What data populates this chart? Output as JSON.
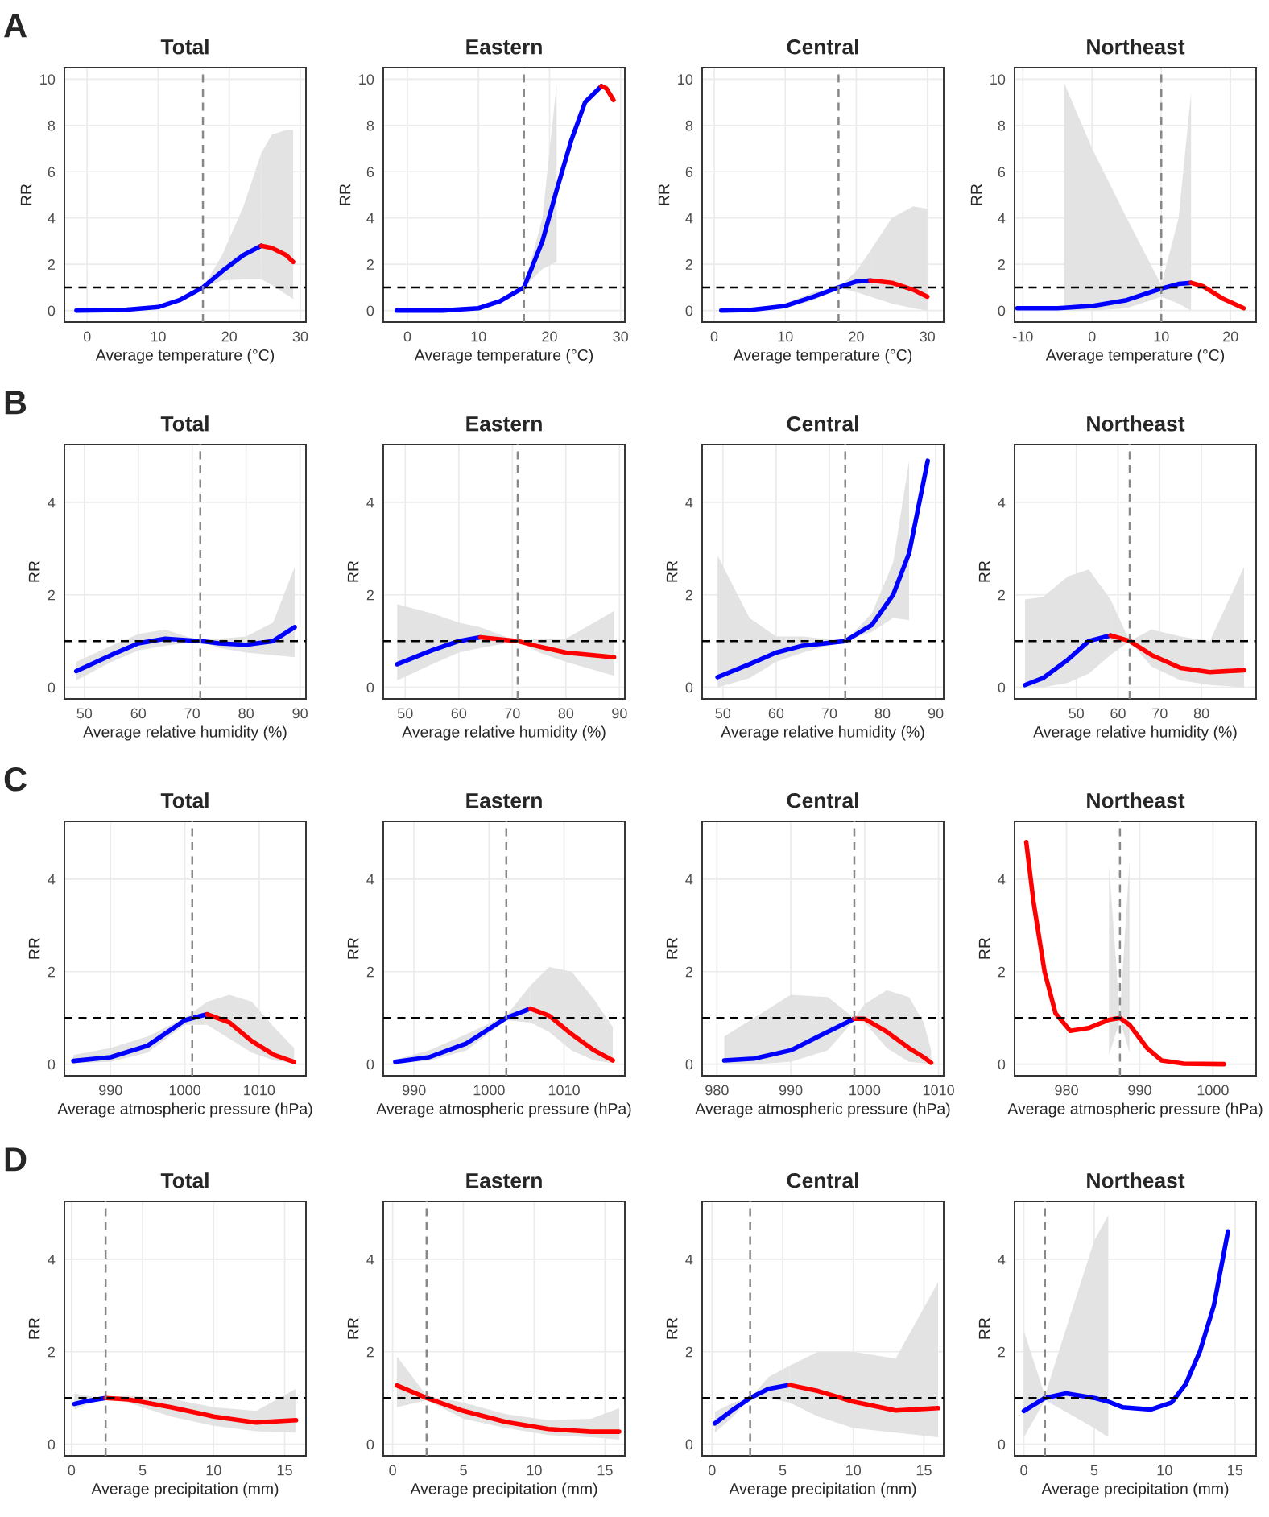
{
  "chart_data": [
    {
      "type": "line",
      "title": "Total",
      "xlabel": "Average temperature (°C)",
      "ylabel": "RR",
      "annotations": [
        "A"
      ],
      "xlim": [
        -3.2,
        30.8
      ],
      "xticks": [
        0,
        10,
        20,
        30
      ],
      "ylim": [
        -0.5,
        10.5
      ],
      "yticks": [
        0,
        2,
        4,
        6,
        8,
        10
      ],
      "grid": true,
      "line_style": "solid",
      "ref_lines": [
        {
          "axis": "x",
          "value": 16.3,
          "color": "#888888",
          "line_style": "dashed"
        },
        {
          "axis": "y",
          "value": 1,
          "color": "#000000",
          "line_style": "dashed"
        }
      ],
      "series": [
        {
          "color": "#0000ff",
          "x": [
            -1.5,
            5,
            10,
            13,
            16.3,
            19,
            22,
            24.5
          ],
          "values": [
            0,
            0.02,
            0.15,
            0.45,
            1,
            1.7,
            2.4,
            2.8
          ],
          "lower": [
            0,
            0.02,
            0.12,
            0.4,
            1,
            1.3,
            1.35,
            1.35
          ],
          "upper": [
            0,
            0.02,
            0.18,
            0.5,
            1,
            2.4,
            4.5,
            6.8
          ]
        },
        {
          "color": "#ff0000",
          "x": [
            24.5,
            26,
            28,
            29
          ],
          "values": [
            2.8,
            2.7,
            2.4,
            2.1
          ],
          "lower": [
            1.35,
            1.1,
            0.7,
            0.5
          ],
          "upper": [
            6.8,
            7.6,
            7.8,
            7.8
          ]
        }
      ]
    },
    {
      "type": "line",
      "title": "Eastern",
      "xlabel": "Average temperature (°C)",
      "ylabel": "RR",
      "xlim": [
        -3.4,
        30.6
      ],
      "xticks": [
        0,
        10,
        20,
        30
      ],
      "ylim": [
        -0.5,
        10.5
      ],
      "yticks": [
        0,
        2,
        4,
        6,
        8,
        10
      ],
      "grid": true,
      "line_style": "solid",
      "ref_lines": [
        {
          "axis": "x",
          "value": 16.4,
          "color": "#888888",
          "line_style": "dashed"
        },
        {
          "axis": "y",
          "value": 1,
          "color": "#000000",
          "line_style": "dashed"
        }
      ],
      "series": [
        {
          "color": "#0000ff",
          "x": [
            -1.5,
            5,
            10,
            13,
            16.4,
            19,
            21,
            23,
            25,
            27.3
          ],
          "values": [
            0,
            0,
            0.1,
            0.4,
            1,
            3,
            5.2,
            7.3,
            9,
            9.7
          ],
          "lower": [
            0,
            0,
            0.1,
            0.4,
            1,
            1.8,
            2.1,
            null,
            null,
            null
          ],
          "upper": [
            0,
            0,
            0.1,
            0.4,
            1,
            4,
            9.8,
            null,
            null,
            null
          ]
        },
        {
          "color": "#ff0000",
          "x": [
            27.3,
            28,
            29
          ],
          "values": [
            9.7,
            9.6,
            9.1
          ]
        }
      ]
    },
    {
      "type": "line",
      "title": "Central",
      "xlabel": "Average temperature (°C)",
      "ylabel": "RR",
      "xlim": [
        -1.7,
        32.3
      ],
      "xticks": [
        0,
        10,
        20,
        30
      ],
      "ylim": [
        -0.5,
        10.5
      ],
      "yticks": [
        0,
        2,
        4,
        6,
        8,
        10
      ],
      "grid": true,
      "line_style": "solid",
      "ref_lines": [
        {
          "axis": "x",
          "value": 17.5,
          "color": "#888888",
          "line_style": "dashed"
        },
        {
          "axis": "y",
          "value": 1,
          "color": "#000000",
          "line_style": "dashed"
        }
      ],
      "series": [
        {
          "color": "#0000ff",
          "x": [
            1,
            5,
            10,
            14,
            17.5,
            20,
            22
          ],
          "values": [
            0,
            0.02,
            0.2,
            0.6,
            1,
            1.25,
            1.3
          ],
          "lower": [
            0,
            0.02,
            0.1,
            0.45,
            1,
            0.8,
            0.6
          ],
          "upper": [
            0,
            0.05,
            0.3,
            0.8,
            1,
            1.7,
            2.6
          ]
        },
        {
          "color": "#ff0000",
          "x": [
            22,
            25,
            28,
            30
          ],
          "values": [
            1.3,
            1.2,
            0.9,
            0.6
          ],
          "lower": [
            0.6,
            0.3,
            0.1,
            0
          ],
          "upper": [
            2.6,
            4,
            4.5,
            4.4
          ]
        }
      ]
    },
    {
      "type": "line",
      "title": "Northeast",
      "xlabel": "Average temperature (°C)",
      "ylabel": "RR",
      "xlim": [
        -11.2,
        23.7
      ],
      "xticks": [
        -10,
        0,
        10,
        20
      ],
      "ylim": [
        -0.5,
        10.5
      ],
      "yticks": [
        0,
        2,
        4,
        6,
        8,
        10
      ],
      "grid": true,
      "line_style": "solid",
      "ref_lines": [
        {
          "axis": "x",
          "value": 10,
          "color": "#888888",
          "line_style": "dashed"
        },
        {
          "axis": "y",
          "value": 1,
          "color": "#000000",
          "line_style": "dashed"
        }
      ],
      "series": [
        {
          "color": "#0000ff",
          "x": [
            -10.8,
            -5,
            -4,
            0,
            5,
            10,
            12.5,
            14.3
          ],
          "values": [
            0.1,
            0.1,
            0.12,
            0.2,
            0.45,
            0.95,
            1.15,
            1.2
          ],
          "lower": [
            null,
            null,
            0,
            0,
            0.1,
            0.6,
            0.3,
            0
          ],
          "upper": [
            null,
            null,
            9.8,
            7,
            4,
            1.1,
            4,
            9.4
          ]
        },
        {
          "color": "#ff0000",
          "x": [
            14.3,
            16,
            19,
            21.9
          ],
          "values": [
            1.2,
            1.05,
            0.5,
            0.1
          ]
        }
      ]
    },
    {
      "type": "line",
      "title": "Total",
      "xlabel": "Average relative humidity (%)",
      "ylabel": "RR",
      "annotations": [
        "B"
      ],
      "xlim": [
        46.3,
        91.1
      ],
      "xticks": [
        50,
        60,
        70,
        80,
        90
      ],
      "ylim": [
        -0.25,
        5.25
      ],
      "yticks": [
        0,
        2,
        4
      ],
      "grid": true,
      "line_style": "solid",
      "ref_lines": [
        {
          "axis": "x",
          "value": 71.5,
          "color": "#888888",
          "line_style": "dashed"
        },
        {
          "axis": "y",
          "value": 1,
          "color": "#000000",
          "line_style": "dashed"
        }
      ],
      "series": [
        {
          "color": "#0000ff",
          "x": [
            48.5,
            55,
            60,
            65,
            71.5,
            75,
            80,
            85,
            89
          ],
          "values": [
            0.35,
            0.7,
            0.95,
            1.05,
            1.0,
            0.95,
            0.92,
            1.0,
            1.3
          ],
          "lower": [
            0.15,
            0.55,
            0.8,
            0.9,
            1,
            0.85,
            0.75,
            0.7,
            0.65
          ],
          "upper": [
            0.55,
            0.9,
            1.15,
            1.25,
            1,
            1.05,
            1.1,
            1.4,
            2.6
          ]
        }
      ]
    },
    {
      "type": "line",
      "title": "Eastern",
      "xlabel": "Average relative humidity (%)",
      "ylabel": "RR",
      "xlim": [
        45.9,
        91
      ],
      "xticks": [
        50,
        60,
        70,
        80,
        90
      ],
      "ylim": [
        -0.25,
        5.25
      ],
      "yticks": [
        0,
        2,
        4
      ],
      "grid": true,
      "line_style": "solid",
      "ref_lines": [
        {
          "axis": "x",
          "value": 71,
          "color": "#888888",
          "line_style": "dashed"
        },
        {
          "axis": "y",
          "value": 1,
          "color": "#000000",
          "line_style": "dashed"
        }
      ],
      "series": [
        {
          "color": "#0000ff",
          "x": [
            48.5,
            55,
            60,
            64
          ],
          "values": [
            0.5,
            0.8,
            1.0,
            1.08
          ],
          "lower": [
            0.15,
            0.5,
            0.75,
            0.85
          ],
          "upper": [
            1.8,
            1.6,
            1.4,
            1.3
          ]
        },
        {
          "color": "#ff0000",
          "x": [
            64,
            71,
            75,
            80,
            89
          ],
          "values": [
            1.08,
            1.0,
            0.88,
            0.75,
            0.65
          ],
          "lower": [
            0.85,
            1,
            0.75,
            0.55,
            0.25
          ],
          "upper": [
            1.3,
            1,
            1.05,
            1.05,
            1.65
          ]
        }
      ]
    },
    {
      "type": "line",
      "title": "Central",
      "xlabel": "Average relative humidity (%)",
      "ylabel": "RR",
      "xlim": [
        46.1,
        91.5
      ],
      "xticks": [
        50,
        60,
        70,
        80,
        90
      ],
      "ylim": [
        -0.25,
        5.25
      ],
      "yticks": [
        0,
        2,
        4
      ],
      "grid": true,
      "line_style": "solid",
      "ref_lines": [
        {
          "axis": "x",
          "value": 73,
          "color": "#888888",
          "line_style": "dashed"
        },
        {
          "axis": "y",
          "value": 1,
          "color": "#000000",
          "line_style": "dashed"
        }
      ],
      "series": [
        {
          "color": "#0000ff",
          "x": [
            49,
            55,
            60,
            65,
            73,
            78,
            82,
            85,
            88.5
          ],
          "values": [
            0.22,
            0.5,
            0.75,
            0.9,
            1.0,
            1.35,
            2.0,
            2.9,
            4.9
          ],
          "lower": [
            0,
            0.2,
            0.55,
            0.75,
            1,
            1.2,
            1.5,
            1.45,
            null
          ],
          "upper": [
            2.85,
            1.5,
            1.1,
            1.1,
            1,
            1.6,
            2.7,
            4.9,
            null
          ]
        }
      ]
    },
    {
      "type": "line",
      "title": "Northeast",
      "xlabel": "Average relative humidity (%)",
      "ylabel": "RR",
      "xlim": [
        35.2,
        93.1
      ],
      "xticks": [
        50,
        60,
        70,
        80
      ],
      "ylim": [
        -0.25,
        5.25
      ],
      "yticks": [
        0,
        2,
        4
      ],
      "grid": true,
      "line_style": "solid",
      "ref_lines": [
        {
          "axis": "x",
          "value": 62.8,
          "color": "#888888",
          "line_style": "dashed"
        },
        {
          "axis": "y",
          "value": 1,
          "color": "#000000",
          "line_style": "dashed"
        }
      ],
      "series": [
        {
          "color": "#0000ff",
          "x": [
            37.7,
            42,
            48,
            53,
            58.2
          ],
          "values": [
            0.05,
            0.2,
            0.6,
            1.0,
            1.12
          ],
          "lower": [
            0,
            0,
            0.1,
            0.3,
            0.7
          ],
          "upper": [
            1.9,
            1.95,
            2.4,
            2.55,
            1.9
          ]
        },
        {
          "color": "#ff0000",
          "x": [
            58.2,
            62.8,
            68,
            75,
            82,
            90.2
          ],
          "values": [
            1.12,
            1.0,
            0.7,
            0.42,
            0.33,
            0.37
          ],
          "lower": [
            0.7,
            1,
            0.45,
            0.15,
            0.05,
            0
          ],
          "upper": [
            1.9,
            1,
            1.25,
            1.1,
            1.0,
            2.6
          ]
        }
      ]
    },
    {
      "type": "line",
      "title": "Total",
      "xlabel": "Average atmospheric pressure (hPa)",
      "ylabel": "RR",
      "annotations": [
        "C"
      ],
      "xlim": [
        983.8,
        1016.3
      ],
      "xticks": [
        990,
        1000,
        1010
      ],
      "ylim": [
        -0.25,
        5.25
      ],
      "yticks": [
        0,
        2,
        4
      ],
      "grid": true,
      "line_style": "solid",
      "ref_lines": [
        {
          "axis": "x",
          "value": 1001,
          "color": "#888888",
          "line_style": "dashed"
        },
        {
          "axis": "y",
          "value": 1,
          "color": "#000000",
          "line_style": "dashed"
        }
      ],
      "series": [
        {
          "color": "#0000ff",
          "x": [
            985,
            990,
            995,
            1000,
            1003
          ],
          "values": [
            0.07,
            0.15,
            0.4,
            0.95,
            1.08
          ],
          "lower": [
            0.02,
            0.05,
            0.25,
            0.85,
            0.85
          ],
          "upper": [
            0.2,
            0.35,
            0.6,
            1.0,
            1.35
          ]
        },
        {
          "color": "#ff0000",
          "x": [
            1003,
            1006,
            1009,
            1012,
            1014.7
          ],
          "values": [
            1.08,
            0.9,
            0.5,
            0.2,
            0.05
          ],
          "lower": [
            0.85,
            0.55,
            0.25,
            0.08,
            0.02
          ],
          "upper": [
            1.35,
            1.5,
            1.35,
            0.8,
            0.35
          ]
        }
      ]
    },
    {
      "type": "line",
      "title": "Eastern",
      "xlabel": "Average atmospheric pressure (hPa)",
      "ylabel": "RR",
      "xlim": [
        985.9,
        1018.1
      ],
      "xticks": [
        990,
        1000,
        1010
      ],
      "ylim": [
        -0.25,
        5.25
      ],
      "yticks": [
        0,
        2,
        4
      ],
      "grid": true,
      "line_style": "solid",
      "ref_lines": [
        {
          "axis": "x",
          "value": 1002.3,
          "color": "#888888",
          "line_style": "dashed"
        },
        {
          "axis": "y",
          "value": 1,
          "color": "#000000",
          "line_style": "dashed"
        }
      ],
      "series": [
        {
          "color": "#0000ff",
          "x": [
            987.5,
            992,
            997,
            1002.3,
            1005.5
          ],
          "values": [
            0.05,
            0.15,
            0.45,
            1.0,
            1.2
          ],
          "lower": [
            0.02,
            0.07,
            0.3,
            0.95,
            0.9
          ],
          "upper": [
            0.1,
            0.3,
            0.65,
            1.05,
            1.7
          ]
        },
        {
          "color": "#ff0000",
          "x": [
            1005.5,
            1008,
            1011,
            1014,
            1016.5
          ],
          "values": [
            1.2,
            1.05,
            0.65,
            0.3,
            0.08
          ],
          "lower": [
            0.9,
            0.7,
            0.3,
            0.08,
            0.02
          ],
          "upper": [
            1.7,
            2.1,
            2.0,
            1.4,
            0.8
          ]
        }
      ]
    },
    {
      "type": "line",
      "title": "Central",
      "xlabel": "Average atmospheric pressure (hPa)",
      "ylabel": "RR",
      "xlim": [
        978,
        1010.7
      ],
      "xticks": [
        980,
        990,
        1000,
        1010
      ],
      "ylim": [
        -0.25,
        5.25
      ],
      "yticks": [
        0,
        2,
        4
      ],
      "grid": true,
      "line_style": "solid",
      "ref_lines": [
        {
          "axis": "x",
          "value": 998.6,
          "color": "#888888",
          "line_style": "dashed"
        },
        {
          "axis": "y",
          "value": 1,
          "color": "#000000",
          "line_style": "dashed"
        }
      ],
      "series": [
        {
          "color": "#0000ff",
          "x": [
            981,
            985,
            990,
            995,
            998.6
          ],
          "values": [
            0.08,
            0.12,
            0.3,
            0.7,
            0.98
          ],
          "lower": [
            0,
            0,
            0.05,
            0.3,
            0.95
          ],
          "upper": [
            0.6,
            1.0,
            1.5,
            1.45,
            1.0
          ]
        },
        {
          "color": "#ff0000",
          "x": [
            998.6,
            1000,
            1003,
            1006,
            1008,
            1009
          ],
          "values": [
            0.98,
            0.98,
            0.7,
            0.35,
            0.15,
            0.03
          ],
          "lower": [
            0.95,
            0.9,
            0.35,
            0.05,
            0.02,
            0
          ],
          "upper": [
            1.0,
            1.3,
            1.6,
            1.45,
            0.9,
            0.3
          ]
        }
      ]
    },
    {
      "type": "line",
      "title": "Northeast",
      "xlabel": "Average atmospheric pressure (hPa)",
      "ylabel": "RR",
      "xlim": [
        972.9,
        1005.9
      ],
      "xticks": [
        980,
        990,
        1000
      ],
      "ylim": [
        -0.25,
        5.25
      ],
      "yticks": [
        0,
        2,
        4
      ],
      "grid": true,
      "line_style": "solid",
      "ref_lines": [
        {
          "axis": "x",
          "value": 987.3,
          "color": "#888888",
          "line_style": "dashed"
        },
        {
          "axis": "y",
          "value": 1,
          "color": "#000000",
          "line_style": "dashed"
        }
      ],
      "series": [
        {
          "color": "#ff0000",
          "x": [
            974.5,
            975.5,
            977,
            978.5,
            980.5,
            983,
            985.8,
            987.3,
            988.6,
            991,
            993,
            996,
            1001.5
          ],
          "values": [
            4.8,
            3.5,
            2.0,
            1.1,
            0.72,
            0.78,
            0.96,
            1.0,
            0.85,
            0.35,
            0.08,
            0.01,
            0
          ],
          "lower": [
            null,
            null,
            null,
            null,
            null,
            null,
            0.2,
            0.95,
            0.25,
            null,
            null,
            null,
            null
          ],
          "upper": [
            null,
            null,
            null,
            null,
            null,
            null,
            4.3,
            1.05,
            4.4,
            null,
            null,
            null,
            null
          ]
        }
      ]
    },
    {
      "type": "line",
      "title": "Total",
      "xlabel": "Average precipitation (mm)",
      "ylabel": "RR",
      "annotations": [
        "D"
      ],
      "xlim": [
        -0.5,
        16.5
      ],
      "xticks": [
        0,
        5,
        10,
        15
      ],
      "ylim": [
        -0.25,
        5.25
      ],
      "yticks": [
        0,
        2,
        4
      ],
      "grid": true,
      "line_style": "solid",
      "ref_lines": [
        {
          "axis": "x",
          "value": 2.4,
          "color": "#888888",
          "line_style": "dashed"
        },
        {
          "axis": "y",
          "value": 1,
          "color": "#000000",
          "line_style": "dashed"
        }
      ],
      "series": [
        {
          "color": "#0000ff",
          "x": [
            0.2,
            1,
            2.4
          ],
          "values": [
            0.87,
            0.93,
            1.0
          ],
          "lower": [
            0.75,
            0.85,
            1.0
          ],
          "upper": [
            1.1,
            1.05,
            1.0
          ]
        },
        {
          "color": "#ff0000",
          "x": [
            2.4,
            4,
            7,
            10,
            13,
            15.8
          ],
          "values": [
            1.0,
            0.97,
            0.8,
            0.6,
            0.47,
            0.52
          ],
          "lower": [
            1.0,
            0.9,
            0.6,
            0.4,
            0.28,
            0.25
          ],
          "upper": [
            1.0,
            1.05,
            0.98,
            0.8,
            0.72,
            1.2
          ]
        }
      ]
    },
    {
      "type": "line",
      "title": "Eastern",
      "xlabel": "Average precipitation (mm)",
      "ylabel": "RR",
      "xlim": [
        -0.66,
        16.4
      ],
      "xticks": [
        0,
        5,
        10,
        15
      ],
      "ylim": [
        -0.25,
        5.25
      ],
      "yticks": [
        0,
        2,
        4
      ],
      "grid": true,
      "line_style": "solid",
      "ref_lines": [
        {
          "axis": "x",
          "value": 2.4,
          "color": "#888888",
          "line_style": "dashed"
        },
        {
          "axis": "y",
          "value": 1,
          "color": "#000000",
          "line_style": "dashed"
        }
      ],
      "series": [
        {
          "color": "#ff0000",
          "x": [
            0.3,
            2.4,
            5,
            8,
            11,
            14,
            16
          ],
          "values": [
            1.27,
            1.0,
            0.72,
            0.48,
            0.33,
            0.27,
            0.27
          ],
          "lower": [
            0.8,
            0.95,
            0.55,
            0.35,
            0.2,
            0.15,
            0.1
          ],
          "upper": [
            1.9,
            1.05,
            0.9,
            0.65,
            0.52,
            0.55,
            0.78
          ]
        }
      ]
    },
    {
      "type": "line",
      "title": "Central",
      "xlabel": "Average precipitation (mm)",
      "ylabel": "RR",
      "xlim": [
        -0.7,
        16.4
      ],
      "xticks": [
        0,
        5,
        10,
        15
      ],
      "ylim": [
        -0.25,
        5.25
      ],
      "yticks": [
        0,
        2,
        4
      ],
      "grid": true,
      "line_style": "solid",
      "ref_lines": [
        {
          "axis": "x",
          "value": 2.7,
          "color": "#888888",
          "line_style": "dashed"
        },
        {
          "axis": "y",
          "value": 1,
          "color": "#000000",
          "line_style": "dashed"
        }
      ],
      "series": [
        {
          "color": "#0000ff",
          "x": [
            0.2,
            1.5,
            2.7,
            4,
            5.5
          ],
          "values": [
            0.45,
            0.75,
            1.0,
            1.2,
            1.28
          ],
          "lower": [
            0.25,
            0.6,
            1.0,
            1.0,
            0.9
          ],
          "upper": [
            0.7,
            0.9,
            1.0,
            1.45,
            1.7
          ]
        },
        {
          "color": "#ff0000",
          "x": [
            5.5,
            7.5,
            10,
            13,
            16
          ],
          "values": [
            1.28,
            1.15,
            0.92,
            0.73,
            0.78
          ],
          "lower": [
            0.9,
            0.6,
            0.35,
            0.25,
            0.15
          ],
          "upper": [
            1.7,
            2.0,
            2.0,
            1.85,
            3.5
          ]
        }
      ]
    },
    {
      "type": "line",
      "title": "Northeast",
      "xlabel": "Average precipitation (mm)",
      "ylabel": "RR",
      "xlim": [
        -0.66,
        16.5
      ],
      "xticks": [
        0,
        5,
        10,
        15
      ],
      "ylim": [
        -0.25,
        5.25
      ],
      "yticks": [
        0,
        2,
        4
      ],
      "grid": true,
      "line_style": "solid",
      "ref_lines": [
        {
          "axis": "x",
          "value": 1.5,
          "color": "#888888",
          "line_style": "dashed"
        },
        {
          "axis": "y",
          "value": 1,
          "color": "#000000",
          "line_style": "dashed"
        }
      ],
      "series": [
        {
          "color": "#0000ff",
          "x": [
            0,
            1.5,
            3,
            5,
            6,
            7,
            9,
            10.5,
            11.5,
            12.5,
            13.5,
            14.5
          ],
          "values": [
            0.72,
            1.0,
            1.1,
            1.0,
            0.92,
            0.8,
            0.75,
            0.9,
            1.3,
            2.0,
            3.0,
            4.6
          ],
          "lower": [
            0.15,
            0.95,
            0.7,
            0.35,
            0.15,
            null,
            null,
            null,
            null,
            null,
            null,
            null
          ],
          "upper": [
            2.45,
            1.05,
            2.5,
            4.4,
            4.95,
            null,
            null,
            null,
            null,
            null,
            null,
            null
          ]
        }
      ]
    }
  ]
}
